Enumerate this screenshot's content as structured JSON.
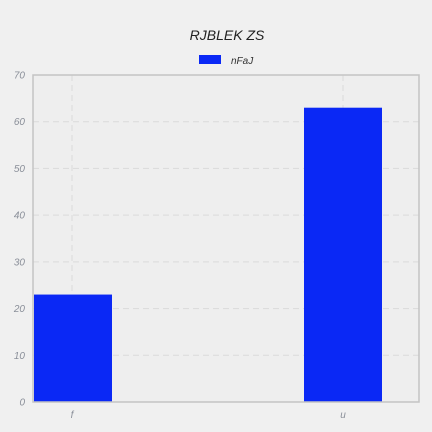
{
  "chart_data": {
    "type": "bar",
    "title": "RJBLEK ZS",
    "xlabel": "",
    "ylabel": "",
    "categories": [
      "f",
      "u"
    ],
    "series": [
      {
        "name": "nFaJ",
        "values": [
          23,
          63
        ],
        "color": "#0a28f5"
      }
    ],
    "ylim": [
      0,
      70
    ],
    "yticks": [
      0,
      10,
      20,
      30,
      40,
      50,
      60,
      70
    ],
    "grid": true,
    "legend": "top-center"
  },
  "colors": {
    "background": "#f0f0f0",
    "plot_background": "#eeeeee",
    "frame": "#c4c4c4",
    "grid": "#dadada"
  }
}
